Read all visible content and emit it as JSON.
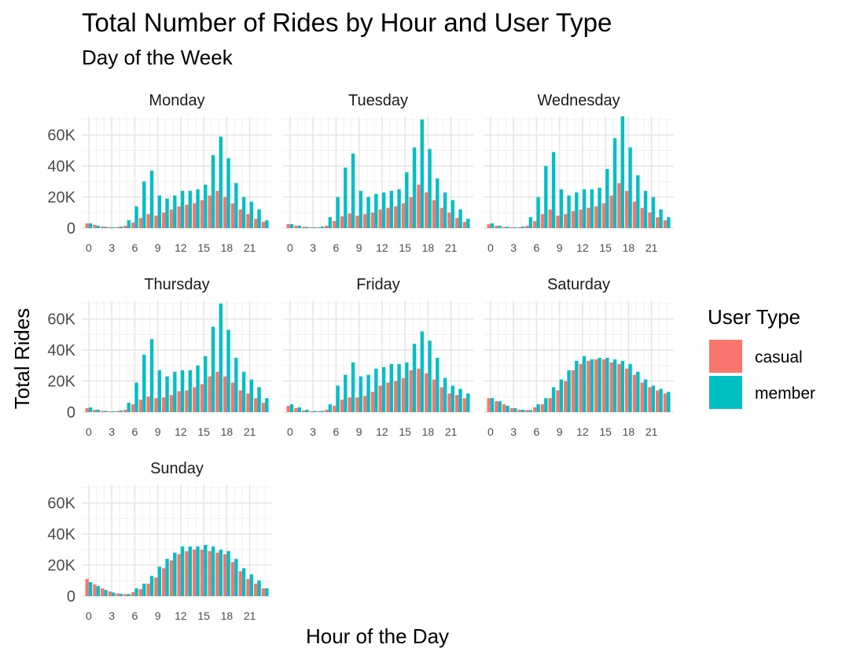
{
  "chart_data": {
    "type": "bar",
    "title": "Total Number of Rides by Hour and User Type",
    "subtitle": "Day of the Week",
    "xlabel": "Hour of the Day",
    "ylabel": "Total Rides",
    "ylim": [
      0,
      72000
    ],
    "y_ticks": [
      0,
      20000,
      40000,
      60000
    ],
    "y_tick_labels": [
      "0",
      "20K",
      "40K",
      "60K"
    ],
    "x_ticks": [
      0,
      3,
      6,
      9,
      12,
      15,
      18,
      21
    ],
    "x_tick_labels": [
      "0",
      "3",
      "6",
      "9",
      "12",
      "15",
      "18",
      "21"
    ],
    "grid": true,
    "legend": {
      "title": "User Type",
      "position": "right",
      "items": [
        {
          "label": "casual",
          "color": "#F8766D"
        },
        {
          "label": "member",
          "color": "#00BFC4"
        }
      ]
    },
    "hours": [
      0,
      1,
      2,
      3,
      4,
      5,
      6,
      7,
      8,
      9,
      10,
      11,
      12,
      13,
      14,
      15,
      16,
      17,
      18,
      19,
      20,
      21,
      22,
      23
    ],
    "facets": [
      {
        "name": "Monday",
        "casual": [
          3000,
          2000,
          1000,
          600,
          700,
          1500,
          3500,
          6500,
          9000,
          8000,
          10000,
          12000,
          14000,
          15000,
          16000,
          18000,
          21000,
          24000,
          20000,
          16000,
          12000,
          9000,
          6000,
          4000
        ],
        "member": [
          3000,
          1500,
          800,
          500,
          900,
          5000,
          14000,
          30000,
          37000,
          21000,
          19000,
          21000,
          24000,
          24000,
          25000,
          28000,
          47000,
          59000,
          45000,
          29000,
          20000,
          17000,
          12000,
          5000
        ]
      },
      {
        "name": "Tuesday",
        "casual": [
          2500,
          1500,
          800,
          500,
          600,
          1500,
          4500,
          7500,
          9500,
          8000,
          9000,
          10000,
          12000,
          13000,
          14000,
          16000,
          20000,
          28000,
          23000,
          18000,
          13000,
          10000,
          6500,
          4000
        ],
        "member": [
          2500,
          1500,
          700,
          500,
          1000,
          7000,
          20000,
          39000,
          48000,
          24000,
          20000,
          22000,
          23000,
          24000,
          25000,
          36000,
          52000,
          70000,
          51000,
          32000,
          23000,
          18000,
          12000,
          6000
        ]
      },
      {
        "name": "Wednesday",
        "casual": [
          2500,
          1500,
          800,
          500,
          600,
          1500,
          4500,
          9000,
          12000,
          8000,
          9000,
          11000,
          12000,
          13000,
          14000,
          16000,
          21000,
          29000,
          24000,
          17000,
          13000,
          10000,
          7000,
          5000
        ],
        "member": [
          3000,
          1500,
          800,
          500,
          1000,
          7000,
          20000,
          40000,
          49000,
          25000,
          21000,
          23000,
          25000,
          25000,
          26000,
          38000,
          58000,
          72000,
          52000,
          34000,
          24000,
          20000,
          12000,
          7000
        ]
      },
      {
        "name": "Thursday",
        "casual": [
          2500,
          1500,
          800,
          500,
          700,
          1500,
          5000,
          8000,
          10000,
          9000,
          9500,
          11000,
          13500,
          14000,
          16000,
          18000,
          23000,
          26000,
          23000,
          19000,
          14000,
          12000,
          9000,
          6000
        ],
        "member": [
          3000,
          1500,
          800,
          500,
          1000,
          6000,
          19000,
          37000,
          47000,
          27000,
          23000,
          26000,
          27000,
          27000,
          30000,
          36000,
          55000,
          70000,
          53000,
          35000,
          26000,
          21000,
          16000,
          9000
        ]
      },
      {
        "name": "Friday",
        "casual": [
          4000,
          2500,
          1000,
          600,
          600,
          1500,
          4000,
          8000,
          9500,
          9500,
          10500,
          13000,
          17000,
          19000,
          20000,
          22000,
          27000,
          28000,
          25000,
          21000,
          16000,
          12000,
          11000,
          9000
        ],
        "member": [
          5000,
          3000,
          1500,
          700,
          800,
          5000,
          17000,
          24000,
          32000,
          23000,
          24000,
          28000,
          29000,
          31000,
          31000,
          32000,
          44000,
          52000,
          46000,
          35000,
          22000,
          17000,
          15000,
          12000
        ]
      },
      {
        "name": "Saturday",
        "casual": [
          9000,
          7000,
          5000,
          2500,
          1500,
          1300,
          3000,
          5000,
          9000,
          14000,
          20000,
          27000,
          31000,
          33000,
          34000,
          34000,
          32000,
          31000,
          28000,
          24000,
          19000,
          16000,
          14000,
          12000
        ],
        "member": [
          9000,
          7000,
          4000,
          2500,
          1500,
          1300,
          5000,
          9000,
          16000,
          21000,
          27000,
          33000,
          36000,
          34000,
          35000,
          35000,
          34000,
          33000,
          31000,
          26000,
          21000,
          17000,
          15000,
          13000
        ]
      },
      {
        "name": "Sunday",
        "casual": [
          11000,
          7500,
          5000,
          3000,
          1700,
          1300,
          2500,
          4500,
          8000,
          12000,
          18000,
          23000,
          27000,
          29000,
          30000,
          30000,
          29000,
          28000,
          27000,
          22000,
          16000,
          11000,
          8000,
          5000
        ],
        "member": [
          9000,
          6500,
          4000,
          2300,
          1500,
          1300,
          5000,
          8000,
          13000,
          19000,
          24000,
          28000,
          32000,
          32000,
          32000,
          33000,
          32000,
          30000,
          29000,
          24000,
          18000,
          14000,
          10000,
          5000
        ]
      }
    ]
  }
}
